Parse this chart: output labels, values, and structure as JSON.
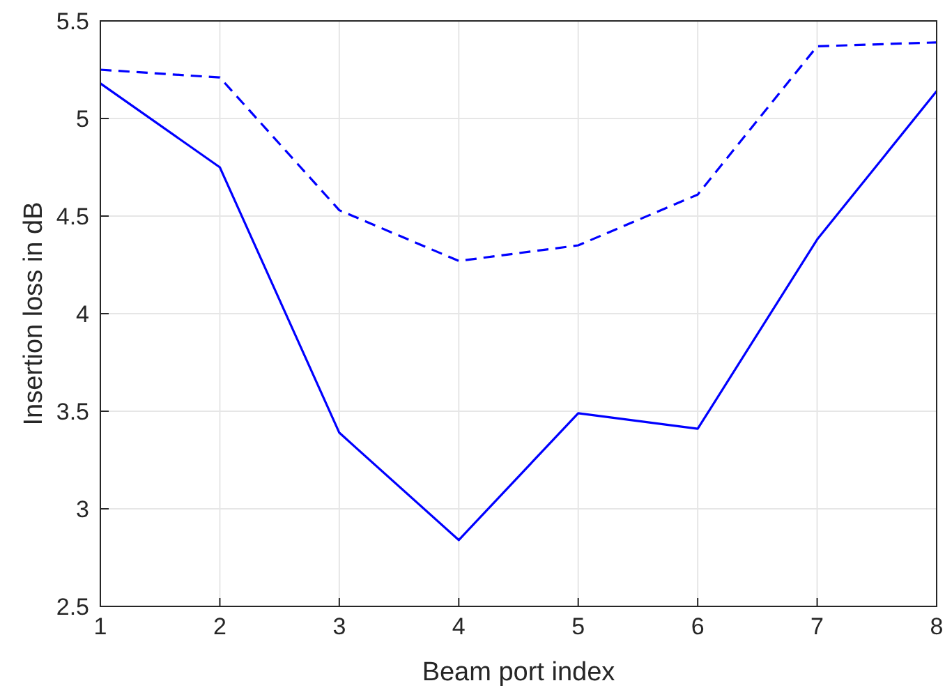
{
  "chart_data": {
    "type": "line",
    "xlabel": "Beam port index",
    "ylabel": "Insertion loss in dB",
    "x": [
      1,
      2,
      3,
      4,
      5,
      6,
      7,
      8
    ],
    "series": [
      {
        "color": "#0000ff",
        "line_style": "solid",
        "values": [
          5.18,
          4.75,
          3.39,
          2.84,
          3.49,
          3.41,
          4.38,
          5.14
        ]
      },
      {
        "color": "#0000ff",
        "line_style": "dashed",
        "values": [
          5.25,
          5.21,
          4.53,
          4.27,
          4.35,
          4.61,
          5.37,
          5.39
        ]
      }
    ],
    "xlim": [
      1,
      8
    ],
    "xticks": [
      1,
      2,
      3,
      4,
      5,
      6,
      7,
      8
    ],
    "ylim": [
      2.5,
      5.5
    ],
    "yticks": [
      2.5,
      3,
      3.5,
      4,
      4.5,
      5,
      5.5
    ],
    "grid": true
  }
}
